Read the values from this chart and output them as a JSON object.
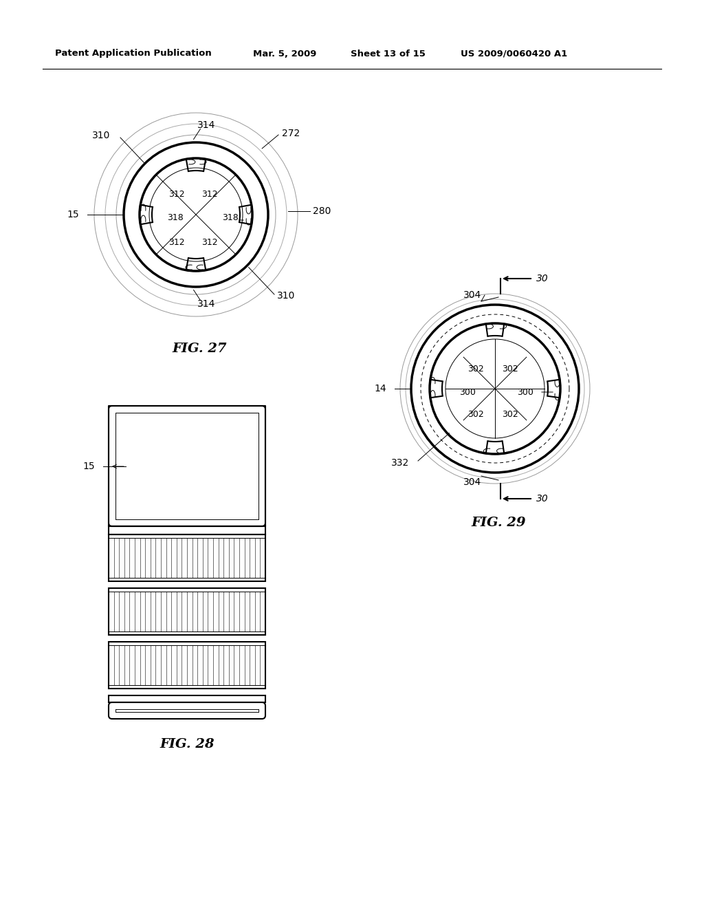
{
  "bg_color": "#ffffff",
  "header_text": "Patent Application Publication",
  "header_date": "Mar. 5, 2009",
  "header_sheet": "Sheet 13 of 15",
  "header_patent": "US 2009/0060420 A1",
  "fig27_title": "FIG. 27",
  "fig28_title": "FIG. 28",
  "fig29_title": "FIG. 29",
  "line_color": "#000000",
  "lw_thick": 2.5,
  "lw_med": 1.5,
  "lw_thin": 0.7
}
